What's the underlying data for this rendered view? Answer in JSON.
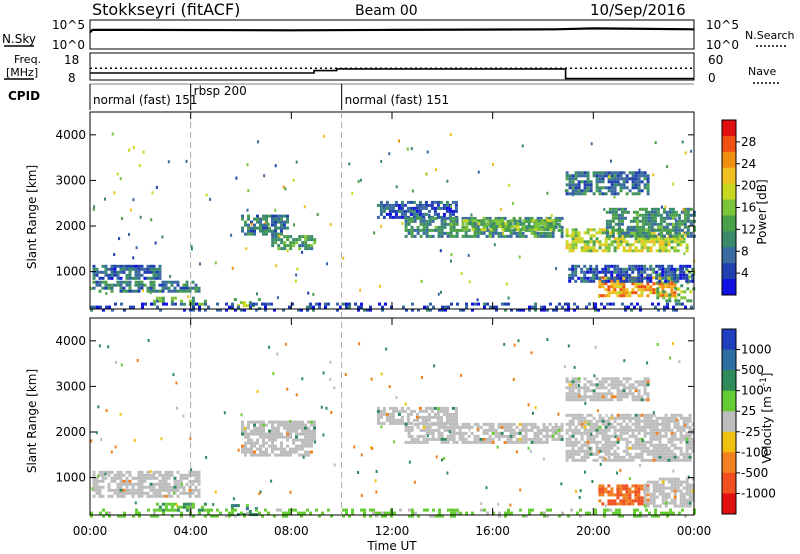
{
  "header": {
    "station": "Stokkseyri (fitACF)",
    "beam": "Beam 00",
    "date": "10/Sep/2016"
  },
  "top_panels": {
    "nsky_label": "N.Sky",
    "nsky_ticks": [
      "10^5",
      "10^0"
    ],
    "nsearch_label": "N.Search",
    "freq_label": "Freq.",
    "freq_unit": "[MHz]",
    "freq_ticks": [
      "18",
      "8"
    ],
    "nave_label": "Nave",
    "nave_ticks": [
      "60",
      "0"
    ],
    "cpid_label": "CPID",
    "cpid_segments": [
      {
        "label": "normal (fast) 151",
        "start_h": 0,
        "end_h": 4
      },
      {
        "label": "rbsp 200",
        "start_h": 4,
        "end_h": 10
      },
      {
        "label": "normal (fast) 151",
        "start_h": 10,
        "end_h": 24
      }
    ]
  },
  "axes": {
    "ylabel": "Slant Range [km]",
    "xlabel": "Time UT",
    "yticks": [
      "1000",
      "2000",
      "3000",
      "4000"
    ],
    "xticks": [
      "00:00",
      "04:00",
      "08:00",
      "12:00",
      "16:00",
      "20:00",
      "00:00"
    ]
  },
  "colorbars": {
    "power": {
      "label": "Power [dB]",
      "ticks": [
        "4",
        "8",
        "12",
        "16",
        "20",
        "24",
        "28"
      ],
      "colors": [
        "#1010e0",
        "#2040b0",
        "#3b6aa0",
        "#3a8a6c",
        "#4aa04a",
        "#7cc43a",
        "#c8d820",
        "#f0c020",
        "#f09010",
        "#f05010",
        "#e01010"
      ]
    },
    "velocity": {
      "label": "Velocity [m s^-1]",
      "ticks": [
        "1000",
        "500",
        "100",
        "25",
        "-25",
        "-100",
        "-500",
        "-1000"
      ],
      "colors": [
        "#1f3fc0",
        "#2d6fa0",
        "#2f8a5a",
        "#66cc33",
        "#bdbdbd",
        "#f0c010",
        "#f08020",
        "#f05020",
        "#e01010"
      ]
    }
  },
  "chart_data": [
    {
      "type": "line",
      "title": "N.Sky / N.Search",
      "series": [
        {
          "name": "N.Sky",
          "x_h": [
            0,
            0.1,
            2,
            8,
            12,
            18.5,
            20,
            24
          ],
          "values": [
            1000,
            3000,
            3000,
            2500,
            3000,
            4000,
            6000,
            4000
          ]
        }
      ],
      "ylim": [
        1,
        100000
      ],
      "ylog": true
    },
    {
      "type": "line",
      "title": "Freq. / Nave",
      "series": [
        {
          "name": "Freq.",
          "x_h": [
            0,
            8.9,
            8.9,
            9.8,
            9.8,
            18.9,
            18.9,
            24
          ],
          "values": [
            10.5,
            10.5,
            11.5,
            11.5,
            12.2,
            12.2,
            8.2,
            8.2
          ]
        },
        {
          "name": "Nave",
          "x_h": [
            0,
            24
          ],
          "values": [
            27,
            27
          ]
        }
      ]
    },
    {
      "type": "heatmap",
      "quantity": "Power",
      "x_h": [
        0,
        24
      ],
      "ylim": [
        180,
        4500
      ],
      "regions": [
        {
          "t0": 0.1,
          "t1": 2.8,
          "r0": 850,
          "r1": 1150,
          "v": 7
        },
        {
          "t0": 0.1,
          "t1": 4.3,
          "r0": 560,
          "r1": 800,
          "v": 9
        },
        {
          "t0": 2.5,
          "t1": 4.6,
          "r0": 300,
          "r1": 450,
          "v": 12
        },
        {
          "t0": 5.6,
          "t1": 6.8,
          "r0": 180,
          "r1": 420,
          "v": 14
        },
        {
          "t0": 6.0,
          "t1": 7.8,
          "r0": 1800,
          "r1": 2250,
          "v": 8
        },
        {
          "t0": 7.2,
          "t1": 8.9,
          "r0": 1500,
          "r1": 1800,
          "v": 12
        },
        {
          "t0": 11.4,
          "t1": 14.5,
          "r0": 2200,
          "r1": 2550,
          "v": 6
        },
        {
          "t0": 12.5,
          "t1": 18.7,
          "r0": 1750,
          "r1": 2200,
          "v": 10
        },
        {
          "t0": 14.8,
          "t1": 18.7,
          "r0": 1900,
          "r1": 2150,
          "v": 14
        },
        {
          "t0": 18.9,
          "t1": 23.7,
          "r0": 1450,
          "r1": 1950,
          "v": 16
        },
        {
          "t0": 20.5,
          "t1": 24.0,
          "r0": 1800,
          "r1": 2400,
          "v": 10
        },
        {
          "t0": 20.2,
          "t1": 23.3,
          "r0": 450,
          "r1": 900,
          "v": 22
        },
        {
          "t0": 22.5,
          "t1": 24.0,
          "r0": 380,
          "r1": 1050,
          "v": 14
        },
        {
          "t0": 19.0,
          "t1": 24.0,
          "r0": 820,
          "r1": 1150,
          "v": 6
        },
        {
          "t0": 18.9,
          "t1": 22.2,
          "r0": 2700,
          "r1": 3200,
          "v": 8
        },
        {
          "t0": 0.0,
          "t1": 24.0,
          "r0": 180,
          "r1": 320,
          "v": 5
        }
      ]
    },
    {
      "type": "heatmap",
      "quantity": "Velocity",
      "x_h": [
        0,
        24
      ],
      "ylim": [
        180,
        4500
      ],
      "regions": [
        {
          "t0": 0.1,
          "t1": 4.3,
          "r0": 560,
          "r1": 1150,
          "v": 0
        },
        {
          "t0": 2.5,
          "t1": 4.6,
          "r0": 300,
          "r1": 450,
          "v": 60
        },
        {
          "t0": 5.6,
          "t1": 6.8,
          "r0": 180,
          "r1": 420,
          "v": 200
        },
        {
          "t0": 6.0,
          "t1": 8.9,
          "r0": 1500,
          "r1": 2250,
          "v": 0
        },
        {
          "t0": 11.4,
          "t1": 14.5,
          "r0": 2200,
          "r1": 2550,
          "v": 0
        },
        {
          "t0": 12.5,
          "t1": 18.7,
          "r0": 1750,
          "r1": 2200,
          "v": 0
        },
        {
          "t0": 18.9,
          "t1": 24.0,
          "r0": 1400,
          "r1": 2400,
          "v": 0
        },
        {
          "t0": 20.2,
          "t1": 22.2,
          "r0": 450,
          "r1": 850,
          "v": -300
        },
        {
          "t0": 22.0,
          "t1": 24.0,
          "r0": 400,
          "r1": 1000,
          "v": 0
        },
        {
          "t0": 18.9,
          "t1": 22.2,
          "r0": 2700,
          "r1": 3200,
          "v": 0
        },
        {
          "t0": 0.0,
          "t1": 24.0,
          "r0": 180,
          "r1": 320,
          "v": 40
        }
      ]
    }
  ]
}
